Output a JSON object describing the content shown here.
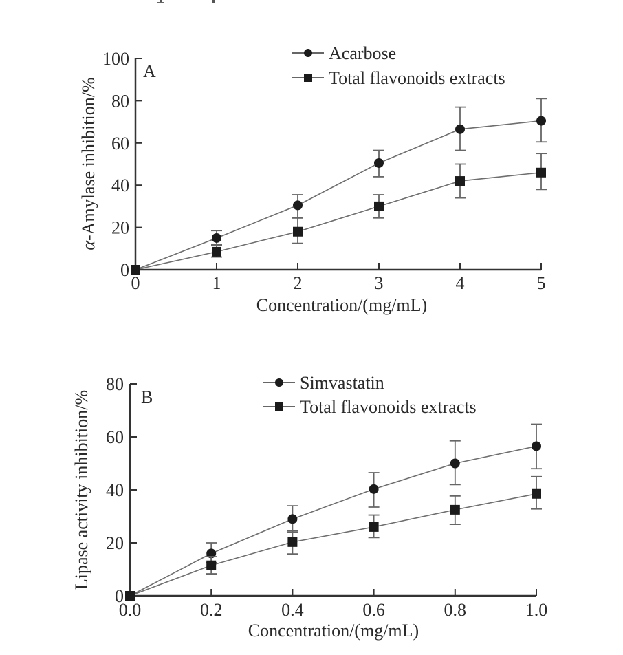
{
  "chart_data": [
    {
      "type": "line",
      "panel_label": "A",
      "title": "",
      "xlabel": "Concentration/(mg/mL)",
      "ylabel": "α-Amylase inhibition/%",
      "xlim": [
        0,
        5
      ],
      "ylim": [
        0,
        100
      ],
      "x_ticks": [
        0,
        1,
        2,
        3,
        4,
        5
      ],
      "x_tick_labels": [
        "0",
        "1",
        "2",
        "3",
        "4",
        "5"
      ],
      "y_ticks": [
        0,
        20,
        40,
        60,
        80,
        100
      ],
      "y_tick_labels": [
        "0",
        "20",
        "40",
        "60",
        "80",
        "100"
      ],
      "grid": false,
      "legend_position": "top-right",
      "x": [
        0,
        1,
        2,
        3,
        4,
        5
      ],
      "series": [
        {
          "name": "Acarbose",
          "marker": "circle",
          "values": [
            0,
            15,
            30.5,
            50.5,
            66.5,
            70.5
          ],
          "err_upper": [
            0,
            18.5,
            35.5,
            56.5,
            77,
            81
          ],
          "err_lower": [
            0,
            12,
            24.5,
            44,
            56.5,
            60.5
          ]
        },
        {
          "name": "Total flavonoids extracts",
          "marker": "square",
          "values": [
            0,
            8.5,
            18,
            30,
            42,
            46
          ],
          "err_upper": [
            0,
            11.5,
            24.5,
            35.5,
            50,
            55
          ],
          "err_lower": [
            0,
            6,
            12.5,
            24.5,
            34,
            38
          ]
        }
      ]
    },
    {
      "type": "line",
      "panel_label": "B",
      "title": "",
      "xlabel": "Concentration/(mg/mL)",
      "ylabel": "Lipase activity inhibition/%",
      "xlim": [
        0,
        1.0
      ],
      "ylim": [
        0,
        80
      ],
      "x_ticks": [
        0,
        0.2,
        0.4,
        0.6,
        0.8,
        1.0
      ],
      "x_tick_labels": [
        "0.0",
        "0.2",
        "0.4",
        "0.6",
        "0.8",
        "1.0"
      ],
      "y_ticks": [
        0,
        20,
        40,
        60,
        80
      ],
      "y_tick_labels": [
        "0",
        "20",
        "40",
        "60",
        "80"
      ],
      "grid": false,
      "legend_position": "top-right",
      "x": [
        0,
        0.2,
        0.4,
        0.6,
        0.8,
        1.0
      ],
      "series": [
        {
          "name": "Simvastatin",
          "marker": "circle",
          "values": [
            0,
            16,
            29,
            40.3,
            50,
            56.5
          ],
          "err_upper": [
            0,
            20,
            34,
            46.5,
            58.5,
            64.8
          ],
          "err_lower": [
            0,
            12.5,
            24,
            33.5,
            42,
            48
          ]
        },
        {
          "name": "Total flavonoids extracts",
          "marker": "square",
          "values": [
            0,
            11.5,
            20.3,
            26,
            32.5,
            38.5
          ],
          "err_upper": [
            0,
            14.8,
            24.5,
            30.5,
            37.7,
            45
          ],
          "err_lower": [
            0,
            8.3,
            15.8,
            22,
            27,
            32.8
          ]
        }
      ]
    }
  ]
}
